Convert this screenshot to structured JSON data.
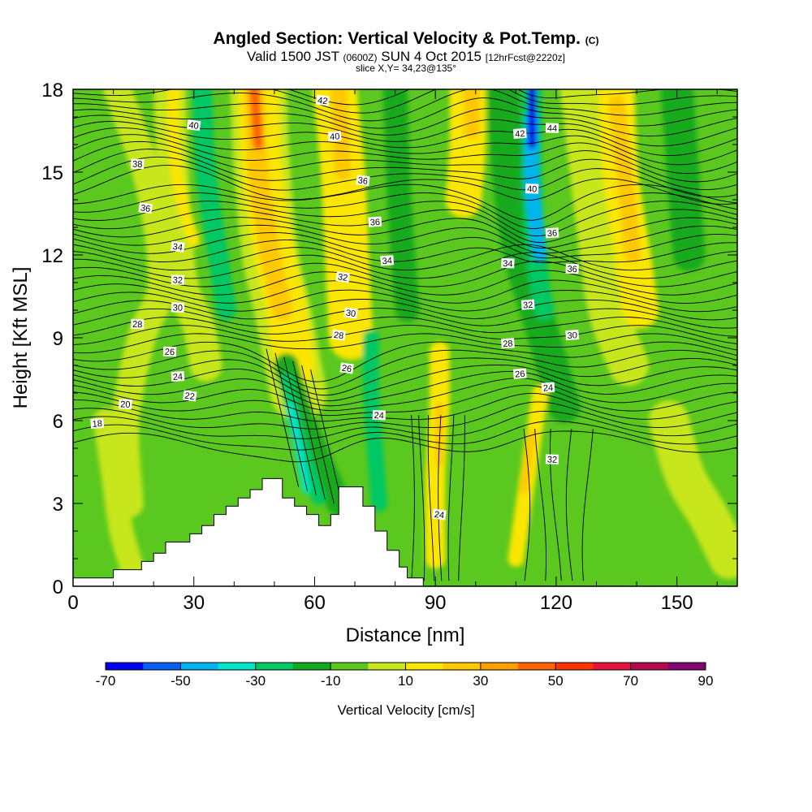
{
  "header": {
    "title_main": "Angled Section: Vertical Velocity & Pot.Temp.",
    "title_unit": "(C)",
    "valid_prefix": "Valid 1500 JST",
    "valid_utc": "(0600Z)",
    "valid_date": "SUN 4 Oct 2015",
    "valid_fcst": "[12hrFcst@2220z]",
    "slice": "slice X,Y= 34,23@135°"
  },
  "colorbar": {
    "label": "Vertical Velocity [cm/s]",
    "tick_labels": [
      "-70",
      "-50",
      "-30",
      "-10",
      "10",
      "30",
      "50",
      "70",
      "90"
    ],
    "colors": [
      "#0000ee",
      "#0a5ff0",
      "#00b4f0",
      "#00e6c8",
      "#00c864",
      "#14aa1e",
      "#5ac81e",
      "#c8e61e",
      "#fae600",
      "#ffc800",
      "#ffa000",
      "#ff6400",
      "#ff3200",
      "#e6143c",
      "#b40a50",
      "#820a6e"
    ]
  },
  "chart_data": {
    "type": "heatmap",
    "title": "Angled Section: Vertical Velocity & Pot.Temp.",
    "xlabel": "Distance [nm]",
    "ylabel": "Height [Kft MSL]",
    "xlim": [
      0,
      165
    ],
    "ylim": [
      0,
      18
    ],
    "x_ticks": [
      0,
      30,
      60,
      90,
      120,
      150
    ],
    "y_ticks": [
      0,
      3,
      6,
      9,
      12,
      15,
      18
    ],
    "background_color": "#5ac81e",
    "velocity_bands": [
      {
        "x": [
          11,
          19,
          22,
          17,
          13,
          14
        ],
        "y": [
          18,
          14.5,
          11,
          9,
          6,
          3
        ],
        "w": 7,
        "color": "#c8e61e"
      },
      {
        "x": [
          24,
          25,
          27,
          31,
          33
        ],
        "y": [
          18,
          14,
          11,
          9.5,
          8
        ],
        "w": 8,
        "color": "#c8e61e"
      },
      {
        "x": [
          25,
          25,
          27,
          30
        ],
        "y": [
          18,
          16,
          14,
          12.5
        ],
        "w": 3,
        "color": "#fae600"
      },
      {
        "x": [
          32,
          33,
          36,
          38
        ],
        "y": [
          18,
          15,
          12,
          10
        ],
        "w": 5,
        "color": "#00c864"
      },
      {
        "x": [
          46,
          47,
          49,
          52,
          54,
          56
        ],
        "y": [
          18,
          15,
          12,
          10,
          8.5,
          7
        ],
        "w": 14,
        "color": "#c8e61e"
      },
      {
        "x": [
          46,
          47,
          50,
          53,
          55
        ],
        "y": [
          18,
          15,
          12,
          10,
          8
        ],
        "w": 10,
        "color": "#fae600"
      },
      {
        "x": [
          45,
          46,
          49,
          52
        ],
        "y": [
          18,
          15,
          12,
          10
        ],
        "w": 5,
        "color": "#ffc800"
      },
      {
        "x": [
          45,
          46
        ],
        "y": [
          18,
          16
        ],
        "w": 2.5,
        "color": "#ff6400"
      },
      {
        "x": [
          53,
          56,
          60,
          63,
          66
        ],
        "y": [
          8,
          6.5,
          5,
          4,
          3
        ],
        "w": 6,
        "color": "#14aa1e"
      },
      {
        "x": [
          53,
          55,
          58,
          61
        ],
        "y": [
          7.5,
          6,
          4.5,
          3.2
        ],
        "w": 3.5,
        "color": "#00c864"
      },
      {
        "x": [
          54,
          56,
          58
        ],
        "y": [
          6.5,
          5,
          3.5
        ],
        "w": 2,
        "color": "#00e6c8"
      },
      {
        "x": [
          65,
          67,
          68,
          69
        ],
        "y": [
          18,
          15,
          12,
          9
        ],
        "w": 11,
        "color": "#fae600"
      },
      {
        "x": [
          66,
          67
        ],
        "y": [
          18,
          15
        ],
        "w": 4,
        "color": "#ffc800"
      },
      {
        "x": [
          74,
          74,
          75,
          76
        ],
        "y": [
          9,
          7,
          5,
          3
        ],
        "w": 4,
        "color": "#00c864"
      },
      {
        "x": [
          80,
          81,
          83
        ],
        "y": [
          18,
          14,
          10
        ],
        "w": 6,
        "color": "#14aa1e"
      },
      {
        "x": [
          91,
          91,
          90,
          90
        ],
        "y": [
          8.5,
          6.5,
          4,
          1
        ],
        "w": 5,
        "color": "#fae600"
      },
      {
        "x": [
          91,
          91
        ],
        "y": [
          6.5,
          4.5
        ],
        "w": 2,
        "color": "#ffc800"
      },
      {
        "x": [
          98,
          98,
          97
        ],
        "y": [
          18,
          16,
          14
        ],
        "w": 9,
        "color": "#fae600"
      },
      {
        "x": [
          99,
          99
        ],
        "y": [
          18,
          16.5
        ],
        "w": 4,
        "color": "#ffc800"
      },
      {
        "x": [
          107,
          108,
          111,
          115,
          119,
          122
        ],
        "y": [
          18,
          15,
          12,
          10,
          8,
          6.5
        ],
        "w": 8,
        "color": "#14aa1e"
      },
      {
        "x": [
          114,
          114,
          115,
          117
        ],
        "y": [
          18,
          15,
          12,
          10
        ],
        "w": 5,
        "color": "#00c864"
      },
      {
        "x": [
          114,
          114,
          116
        ],
        "y": [
          17,
          14.5,
          12
        ],
        "w": 3.5,
        "color": "#00b4f0"
      },
      {
        "x": [
          114,
          114
        ],
        "y": [
          18,
          16
        ],
        "w": 2,
        "color": "#0000ee"
      },
      {
        "x": [
          116,
          114,
          112,
          110
        ],
        "y": [
          7,
          5,
          3,
          1
        ],
        "w": 4,
        "color": "#fae600"
      },
      {
        "x": [
          114,
          112
        ],
        "y": [
          5.5,
          3.5
        ],
        "w": 2,
        "color": "#ffc800"
      },
      {
        "x": [
          126,
          130,
          133,
          138
        ],
        "y": [
          18,
          13,
          10,
          8
        ],
        "w": 10,
        "color": "#c8e61e"
      },
      {
        "x": [
          135,
          136,
          139,
          141
        ],
        "y": [
          18,
          15,
          12,
          10
        ],
        "w": 9,
        "color": "#fae600"
      },
      {
        "x": [
          135,
          137,
          139
        ],
        "y": [
          17.5,
          15,
          12
        ],
        "w": 4,
        "color": "#ffc800"
      },
      {
        "x": [
          150,
          153
        ],
        "y": [
          18,
          12
        ],
        "w": 8,
        "color": "#14aa1e"
      },
      {
        "x": [
          148,
          152,
          158,
          163
        ],
        "y": [
          6,
          4,
          2.5,
          1
        ],
        "w": 10,
        "color": "#c8e61e"
      },
      {
        "x": [
          8,
          10,
          12,
          15
        ],
        "y": [
          6,
          4,
          2,
          0.5
        ],
        "w": 6,
        "color": "#c8e61e"
      }
    ],
    "pot_temp_contours": [
      {
        "level": 18,
        "label": "18",
        "label_x": 6,
        "label_y": 5.9
      },
      {
        "level": 20,
        "label": "20",
        "label_x": 13,
        "label_y": 6.6
      },
      {
        "level": 22,
        "label": "22",
        "label_x": 29,
        "label_y": 6.9
      },
      {
        "level": 24,
        "label": "24",
        "label_x": 26,
        "label_y": 7.6
      },
      {
        "level": 24,
        "label": "24",
        "label_x": 76,
        "label_y": 6.2
      },
      {
        "level": 24,
        "label": "24",
        "label_x": 91,
        "label_y": 2.6
      },
      {
        "level": 24,
        "label": "24",
        "label_x": 118,
        "label_y": 7.2
      },
      {
        "level": 26,
        "label": "26",
        "label_x": 24,
        "label_y": 8.5
      },
      {
        "level": 26,
        "label": "26",
        "label_x": 68,
        "label_y": 7.9
      },
      {
        "level": 26,
        "label": "26",
        "label_x": 111,
        "label_y": 7.7
      },
      {
        "level": 28,
        "label": "28",
        "label_x": 16,
        "label_y": 9.5
      },
      {
        "level": 28,
        "label": "28",
        "label_x": 66,
        "label_y": 9.1
      },
      {
        "level": 28,
        "label": "28",
        "label_x": 108,
        "label_y": 8.8
      },
      {
        "level": 30,
        "label": "30",
        "label_x": 26,
        "label_y": 10.1
      },
      {
        "level": 30,
        "label": "30",
        "label_x": 69,
        "label_y": 9.9
      },
      {
        "level": 30,
        "label": "30",
        "label_x": 124,
        "label_y": 9.1
      },
      {
        "level": 32,
        "label": "32",
        "label_x": 26,
        "label_y": 11.1
      },
      {
        "level": 32,
        "label": "32",
        "label_x": 67,
        "label_y": 11.2
      },
      {
        "level": 32,
        "label": "32",
        "label_x": 113,
        "label_y": 10.2
      },
      {
        "level": 32,
        "label": "32",
        "label_x": 119,
        "label_y": 4.6
      },
      {
        "level": 34,
        "label": "34",
        "label_x": 26,
        "label_y": 12.3
      },
      {
        "level": 34,
        "label": "34",
        "label_x": 78,
        "label_y": 11.8
      },
      {
        "level": 34,
        "label": "34",
        "label_x": 108,
        "label_y": 11.7
      },
      {
        "level": 36,
        "label": "36",
        "label_x": 18,
        "label_y": 13.7
      },
      {
        "level": 36,
        "label": "36",
        "label_x": 75,
        "label_y": 13.2
      },
      {
        "level": 36,
        "label": "36",
        "label_x": 124,
        "label_y": 11.5
      },
      {
        "level": 36,
        "label": "36",
        "label_x": 72,
        "label_y": 14.7
      },
      {
        "level": 36,
        "label": "36",
        "label_x": 119,
        "label_y": 12.8
      },
      {
        "level": 38,
        "label": "38",
        "label_x": 16,
        "label_y": 15.3
      },
      {
        "level": 40,
        "label": "40",
        "label_x": 30,
        "label_y": 16.7
      },
      {
        "level": 40,
        "label": "40",
        "label_x": 65,
        "label_y": 16.3
      },
      {
        "level": 40,
        "label": "40",
        "label_x": 114,
        "label_y": 14.4
      },
      {
        "level": 42,
        "label": "42",
        "label_x": 62,
        "label_y": 17.6
      },
      {
        "level": 42,
        "label": "42",
        "label_x": 111,
        "label_y": 16.4
      },
      {
        "level": 44,
        "label": "44",
        "label_x": 119,
        "label_y": 16.6
      }
    ],
    "terrain": {
      "x": [
        0,
        10,
        10,
        17,
        17,
        20,
        20,
        23,
        23,
        29,
        29,
        32,
        32,
        35,
        35,
        38,
        38,
        41,
        41,
        44,
        44,
        47,
        47,
        52,
        52,
        55,
        55,
        58,
        58,
        61,
        61,
        64,
        64,
        66,
        66,
        72,
        72,
        75,
        75,
        78,
        78,
        81,
        81,
        83,
        83,
        87,
        87,
        165
      ],
      "y": [
        0.3,
        0.3,
        0.6,
        0.6,
        0.9,
        0.9,
        1.2,
        1.2,
        1.6,
        1.6,
        1.9,
        1.9,
        2.2,
        2.2,
        2.6,
        2.6,
        2.9,
        2.9,
        3.2,
        3.2,
        3.5,
        3.5,
        3.9,
        3.9,
        3.2,
        3.2,
        2.9,
        2.9,
        2.6,
        2.6,
        2.2,
        2.2,
        2.6,
        2.6,
        3.6,
        3.6,
        2.9,
        2.9,
        2.0,
        2.0,
        1.3,
        1.3,
        0.7,
        0.7,
        0.3,
        0.3,
        0,
        0
      ]
    }
  },
  "chart_labels": {
    "x_tick_labels": [
      "0",
      "30",
      "60",
      "90",
      "120",
      "150"
    ],
    "y_tick_labels": [
      "0",
      "3",
      "6",
      "9",
      "12",
      "15",
      "18"
    ]
  }
}
